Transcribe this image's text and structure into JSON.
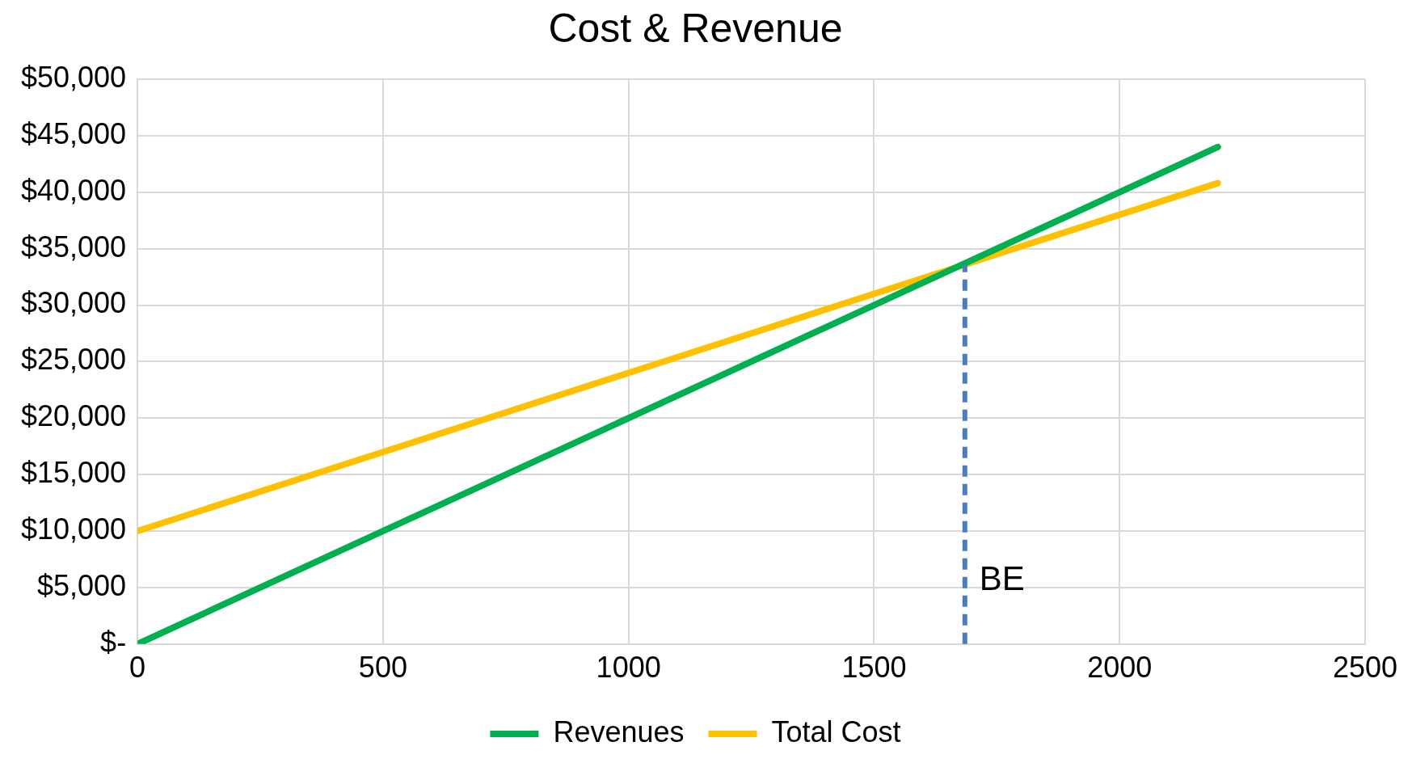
{
  "chart_data": {
    "type": "line",
    "title": "Cost & Revenue",
    "xlim": [
      0,
      2500
    ],
    "xticks": [
      0,
      500,
      1000,
      1500,
      2000,
      2500
    ],
    "ylim": [
      0,
      50000
    ],
    "yticks": [
      {
        "value": 0,
        "label": "$-"
      },
      {
        "value": 5000,
        "label": "$5,000"
      },
      {
        "value": 10000,
        "label": "$10,000"
      },
      {
        "value": 15000,
        "label": "$15,000"
      },
      {
        "value": 20000,
        "label": "$20,000"
      },
      {
        "value": 25000,
        "label": "$25,000"
      },
      {
        "value": 30000,
        "label": "$30,000"
      },
      {
        "value": 35000,
        "label": "$35,000"
      },
      {
        "value": 40000,
        "label": "$40,000"
      },
      {
        "value": 45000,
        "label": "$45,000"
      },
      {
        "value": 50000,
        "label": "$50,000"
      }
    ],
    "x": [
      0,
      2200
    ],
    "series": [
      {
        "name": "Revenues",
        "color": "#00b050",
        "values": [
          0,
          44000
        ]
      },
      {
        "name": "Total Cost",
        "color": "#ffc000",
        "values": [
          10000,
          40800
        ]
      }
    ],
    "ref_lines": [
      {
        "axis": "x",
        "value": 1685,
        "label": "BE",
        "color": "#4a7ebb",
        "line_style": "dashed"
      }
    ],
    "grid": true,
    "legend": "bottom",
    "marker": "none",
    "line_style": "solid"
  }
}
